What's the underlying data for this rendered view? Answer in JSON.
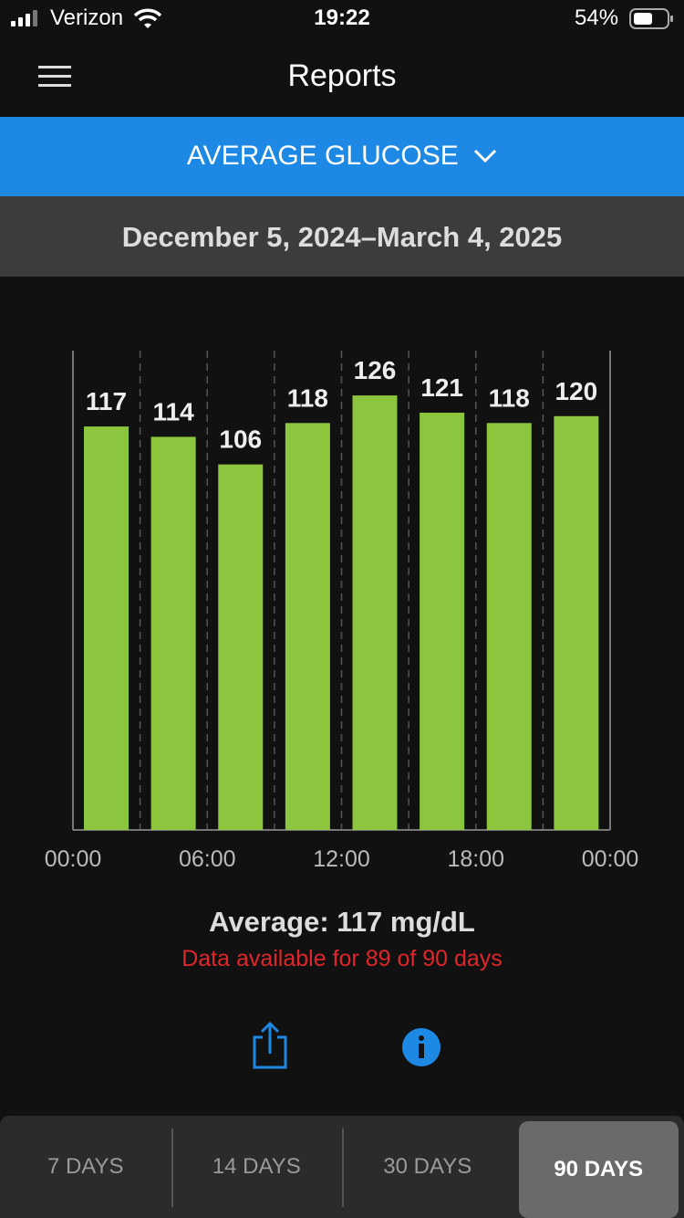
{
  "status_bar": {
    "carrier": "Verizon",
    "time": "19:22",
    "battery": "54%"
  },
  "header": {
    "title": "Reports"
  },
  "report_selector": "AVERAGE GLUCOSE",
  "date_range": "December 5, 2024–March 4, 2025",
  "chart_data": {
    "type": "bar",
    "categories": [
      null,
      null,
      null,
      null,
      null,
      null,
      null,
      null
    ],
    "values": [
      117,
      114,
      106,
      118,
      126,
      121,
      118,
      120
    ],
    "x_labels": [
      "00:00",
      "06:00",
      "12:00",
      "18:00",
      "00:00"
    ],
    "color": "#8cc63e",
    "ylim": [
      0,
      139
    ]
  },
  "summary": {
    "average": "Average: 117 mg/dL",
    "availability": "Data available for 89 of 90 days"
  },
  "tabs": {
    "items": [
      "7 DAYS",
      "14 DAYS",
      "30 DAYS",
      "90 DAYS"
    ],
    "selected": 3
  }
}
